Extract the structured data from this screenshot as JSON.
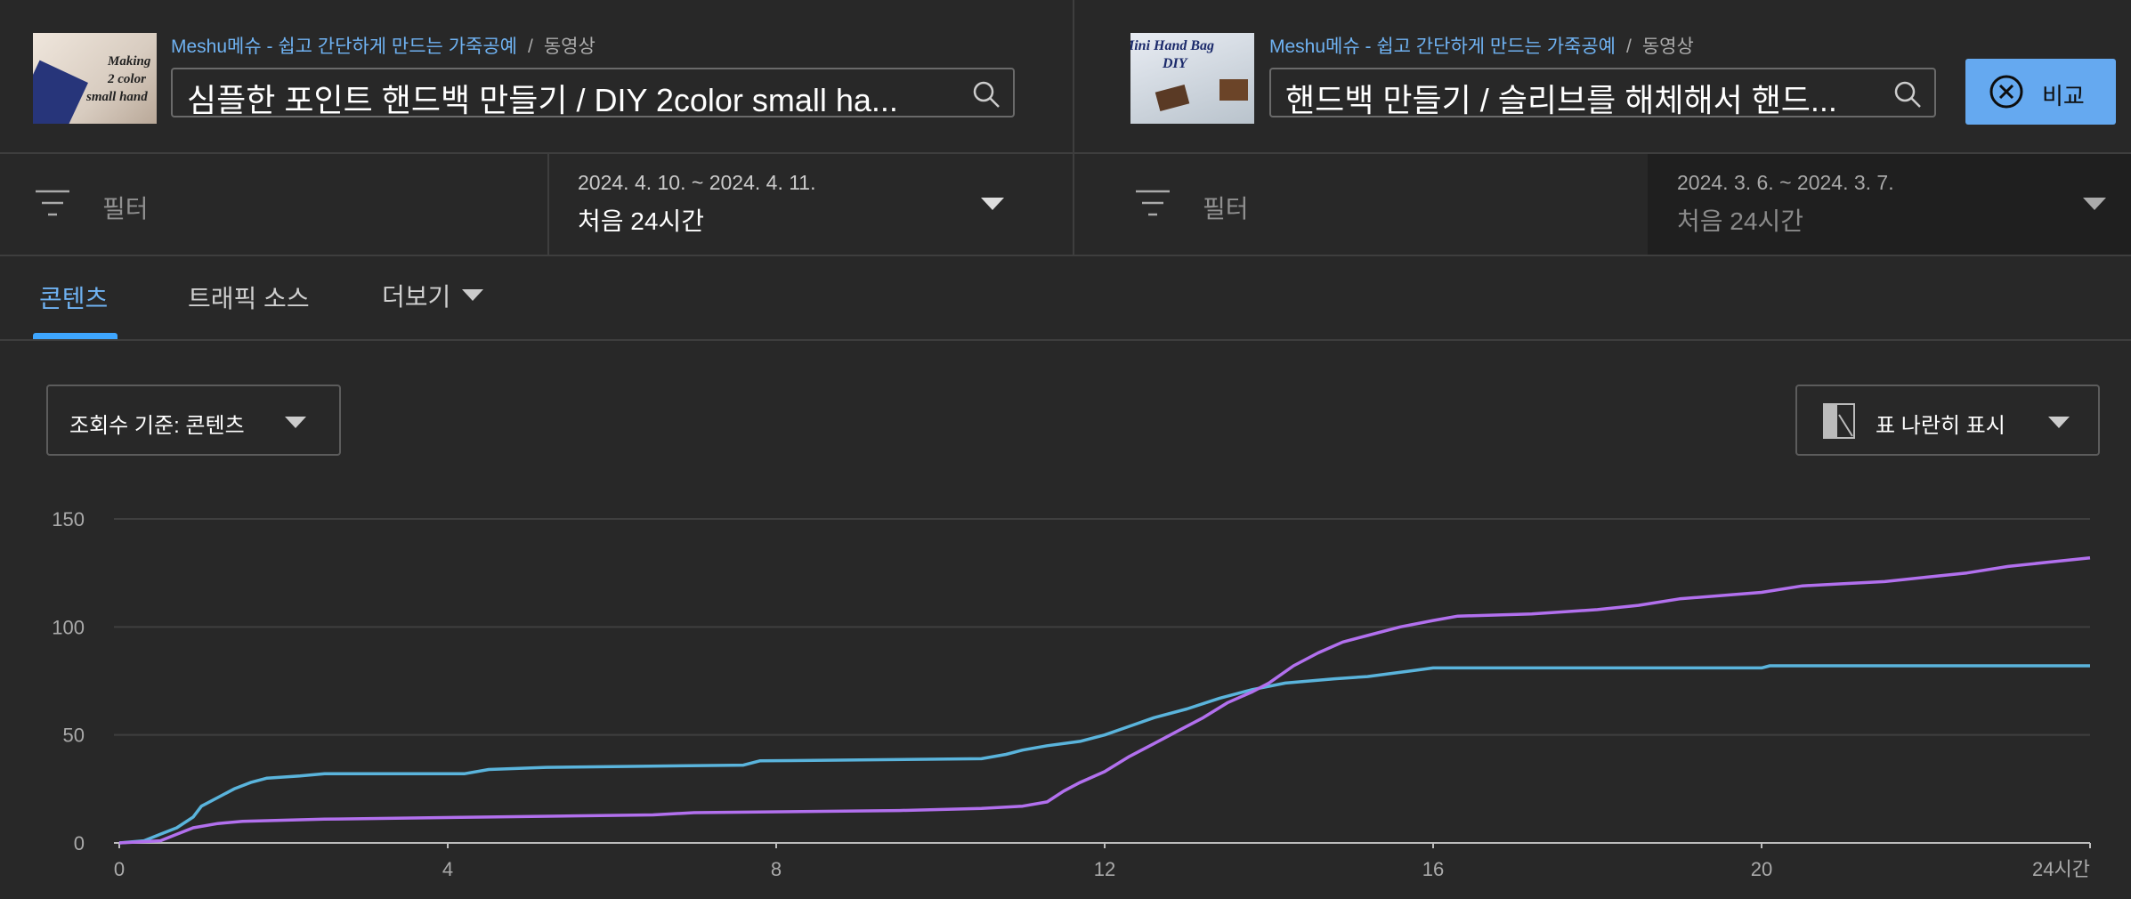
{
  "left_video": {
    "thumbnail_lines": [
      "Making",
      "2 color",
      "small hand"
    ],
    "channel": "Meshu메슈 - 쉽고 간단하게 만드는 가죽공예",
    "separator": "/",
    "content_type": "동영상",
    "title": "심플한 포인트 핸드백 만들기 / DIY 2color small ha...",
    "filter": "필터",
    "date_range": "2024. 4. 10. ~ 2024. 4. 11.",
    "period": "처음 24시간"
  },
  "right_video": {
    "thumbnail_lines": [
      "Mini Hand Bag",
      "DIY"
    ],
    "channel": "Meshu메슈 - 쉽고 간단하게 만드는 가죽공예",
    "separator": "/",
    "content_type": "동영상",
    "title": "핸드백 만들기 / 슬리브를 해체해서 핸드...",
    "filter": "필터",
    "date_range": "2024. 3. 6. ~ 2024. 3. 7.",
    "period": "처음 24시간"
  },
  "compare_button": "비교",
  "tabs": [
    "콘텐츠",
    "트래픽 소스",
    "더보기"
  ],
  "metric_dropdown": "조회수 기준: 콘텐츠",
  "view_dropdown": "표 나란히 표시",
  "chart_data": {
    "type": "line",
    "xlim": [
      0,
      24
    ],
    "ylim": [
      0,
      150
    ],
    "xticks": [
      0,
      4,
      8,
      12,
      16,
      20,
      {
        "value": 24,
        "label": "24시간"
      }
    ],
    "yticks": [
      0,
      50,
      100,
      150
    ],
    "grid": true,
    "series": [
      {
        "color": "#5ab4dc",
        "x": [
          0,
          0.3,
          0.5,
          0.7,
          0.9,
          1.0,
          1.2,
          1.4,
          1.6,
          1.8,
          2.2,
          2.5,
          4.2,
          4.5,
          5.2,
          7.6,
          7.8,
          10.5,
          10.8,
          11.0,
          11.3,
          11.7,
          12.0,
          12.3,
          12.6,
          13.0,
          13.4,
          13.8,
          14.2,
          14.8,
          15.2,
          15.8,
          16.0,
          20.0,
          20.1,
          24
        ],
        "values": [
          0,
          1,
          4,
          7,
          12,
          17,
          21,
          25,
          28,
          30,
          31,
          32,
          32,
          34,
          35,
          36,
          38,
          39,
          41,
          43,
          45,
          47,
          50,
          54,
          58,
          62,
          67,
          71,
          74,
          76,
          77,
          80,
          81,
          81,
          82,
          82
        ]
      },
      {
        "color": "#b270ee",
        "x": [
          0,
          0.5,
          0.7,
          0.9,
          1.2,
          1.5,
          2.5,
          4.5,
          6.5,
          7.0,
          9.5,
          10.5,
          11.0,
          11.3,
          11.5,
          11.7,
          12.0,
          12.3,
          12.6,
          12.9,
          13.2,
          13.5,
          13.8,
          14.0,
          14.3,
          14.6,
          14.9,
          15.2,
          15.6,
          16.0,
          16.3,
          17.2,
          18.0,
          18.5,
          19.0,
          20.0,
          20.5,
          21.0,
          21.5,
          22.0,
          22.5,
          23.0,
          23.5,
          24
        ],
        "values": [
          0,
          1,
          4,
          7,
          9,
          10,
          11,
          12,
          13,
          14,
          15,
          16,
          17,
          19,
          24,
          28,
          33,
          40,
          46,
          52,
          58,
          65,
          70,
          74,
          82,
          88,
          93,
          96,
          100,
          103,
          105,
          106,
          108,
          110,
          113,
          116,
          119,
          120,
          121,
          123,
          125,
          128,
          130,
          132
        ]
      }
    ]
  }
}
